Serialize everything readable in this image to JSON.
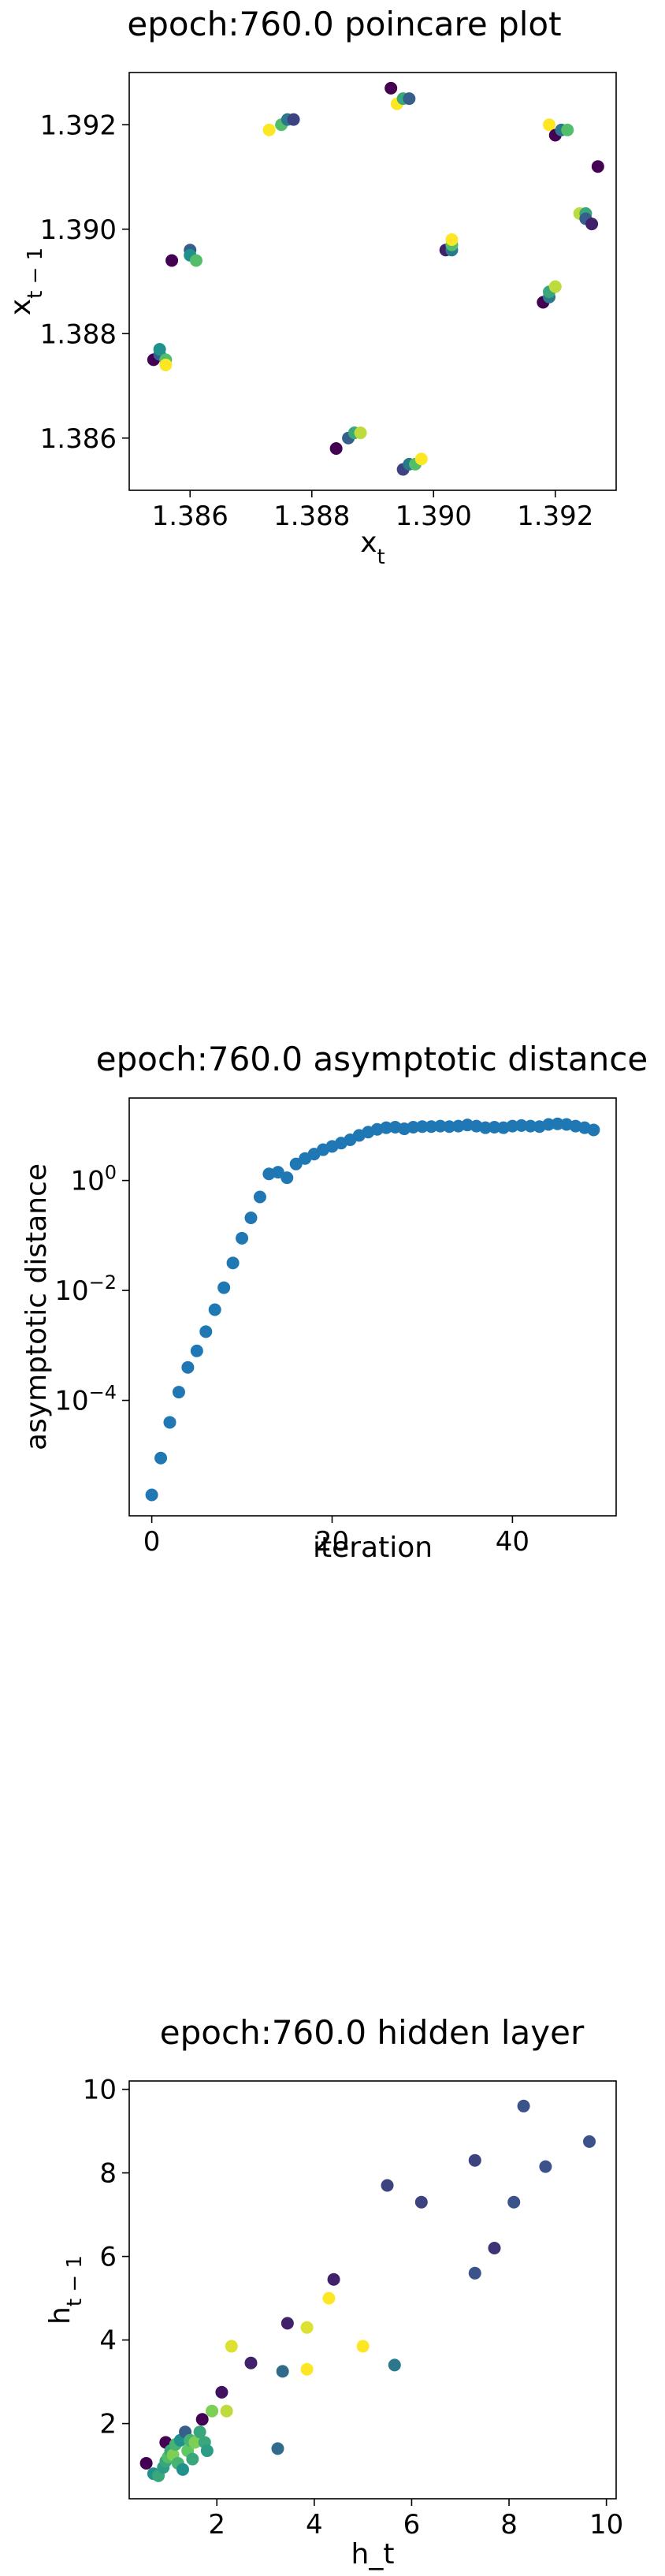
{
  "chart_data": [
    {
      "type": "scatter",
      "title": "epoch:760.0 poincare plot",
      "xlabel": "x_t",
      "ylabel": "x_{t-1}",
      "xlim": [
        1.385,
        1.393
      ],
      "ylim": [
        1.385,
        1.393
      ],
      "xticks": [
        "1.386",
        "1.388",
        "1.390",
        "1.392"
      ],
      "yticks": [
        "1.386",
        "1.388",
        "1.390",
        "1.392"
      ],
      "colormap": [
        "#440154",
        "#3b528b",
        "#21918c",
        "#5ec962",
        "#fde725"
      ],
      "points": [
        {
          "x": 1.3854,
          "y": 1.3875,
          "c": 0.0
        },
        {
          "x": 1.3855,
          "y": 1.3876,
          "c": 0.3
        },
        {
          "x": 1.3855,
          "y": 1.3877,
          "c": 0.5
        },
        {
          "x": 1.3856,
          "y": 1.3875,
          "c": 0.7
        },
        {
          "x": 1.3856,
          "y": 1.3874,
          "c": 1.0
        },
        {
          "x": 1.3857,
          "y": 1.3894,
          "c": 0.0
        },
        {
          "x": 1.386,
          "y": 1.3896,
          "c": 0.3
        },
        {
          "x": 1.386,
          "y": 1.3895,
          "c": 0.5
        },
        {
          "x": 1.3861,
          "y": 1.3894,
          "c": 0.7
        },
        {
          "x": 1.3873,
          "y": 1.3919,
          "c": 1.0
        },
        {
          "x": 1.3875,
          "y": 1.392,
          "c": 0.7
        },
        {
          "x": 1.3876,
          "y": 1.3921,
          "c": 0.4
        },
        {
          "x": 1.3877,
          "y": 1.3921,
          "c": 0.2
        },
        {
          "x": 1.3884,
          "y": 1.3858,
          "c": 0.0
        },
        {
          "x": 1.3886,
          "y": 1.386,
          "c": 0.3
        },
        {
          "x": 1.3887,
          "y": 1.3861,
          "c": 0.6
        },
        {
          "x": 1.3888,
          "y": 1.3861,
          "c": 0.9
        },
        {
          "x": 1.3893,
          "y": 1.3927,
          "c": 0.0
        },
        {
          "x": 1.3894,
          "y": 1.3924,
          "c": 1.0
        },
        {
          "x": 1.3895,
          "y": 1.3925,
          "c": 0.6
        },
        {
          "x": 1.3896,
          "y": 1.3925,
          "c": 0.3
        },
        {
          "x": 1.3895,
          "y": 1.3854,
          "c": 0.2
        },
        {
          "x": 1.3896,
          "y": 1.3855,
          "c": 0.4
        },
        {
          "x": 1.3897,
          "y": 1.3855,
          "c": 0.7
        },
        {
          "x": 1.3898,
          "y": 1.3856,
          "c": 1.0
        },
        {
          "x": 1.3902,
          "y": 1.3896,
          "c": 0.1
        },
        {
          "x": 1.3903,
          "y": 1.3896,
          "c": 0.4
        },
        {
          "x": 1.3903,
          "y": 1.3897,
          "c": 0.7
        },
        {
          "x": 1.3903,
          "y": 1.3898,
          "c": 1.0
        },
        {
          "x": 1.3918,
          "y": 1.3886,
          "c": 0.0
        },
        {
          "x": 1.3919,
          "y": 1.3887,
          "c": 0.4
        },
        {
          "x": 1.3919,
          "y": 1.3888,
          "c": 0.6
        },
        {
          "x": 1.392,
          "y": 1.3889,
          "c": 0.9
        },
        {
          "x": 1.3919,
          "y": 1.392,
          "c": 1.0
        },
        {
          "x": 1.392,
          "y": 1.3918,
          "c": 0.0
        },
        {
          "x": 1.3921,
          "y": 1.3919,
          "c": 0.4
        },
        {
          "x": 1.3922,
          "y": 1.3919,
          "c": 0.7
        },
        {
          "x": 1.3924,
          "y": 1.3903,
          "c": 0.9
        },
        {
          "x": 1.3925,
          "y": 1.3903,
          "c": 0.6
        },
        {
          "x": 1.3925,
          "y": 1.3902,
          "c": 0.3
        },
        {
          "x": 1.3926,
          "y": 1.3901,
          "c": 0.1
        },
        {
          "x": 1.3927,
          "y": 1.3912,
          "c": 0.0
        }
      ]
    },
    {
      "type": "scatter",
      "title": "epoch:760.0 asymptotic distance",
      "xlabel": "iteration",
      "ylabel": "asymptotic distance",
      "yscale": "log",
      "xlim": [
        -2.5,
        51.5
      ],
      "ylim_log10": [
        -6.1,
        1.5
      ],
      "xticks": [
        0,
        20,
        40
      ],
      "yticks_exp": [
        -4,
        -2,
        0
      ],
      "tick_base": "10",
      "color": "#1f77b4",
      "log10_values": [
        -5.72,
        -5.05,
        -4.4,
        -3.85,
        -3.4,
        -3.1,
        -2.75,
        -2.35,
        -1.95,
        -1.5,
        -1.05,
        -0.68,
        -0.3,
        0.12,
        0.15,
        0.05,
        0.3,
        0.4,
        0.48,
        0.56,
        0.62,
        0.68,
        0.74,
        0.82,
        0.88,
        0.93,
        0.96,
        0.97,
        0.94,
        0.97,
        0.98,
        0.98,
        0.99,
        0.98,
        0.99,
        1.01,
        0.99,
        0.96,
        0.97,
        0.96,
        0.99,
        1.0,
        0.99,
        0.98,
        1.02,
        1.03,
        1.02,
        0.99,
        0.96,
        0.92
      ]
    },
    {
      "type": "scatter",
      "title": "epoch:760.0 hidden layer",
      "xlabel": "h_t",
      "ylabel": "h_{t-1}",
      "xlim": [
        0.2,
        10.2
      ],
      "ylim": [
        0.2,
        10.2
      ],
      "xticks": [
        2,
        4,
        6,
        8,
        10
      ],
      "yticks": [
        2,
        4,
        6,
        8,
        10
      ],
      "points": [
        {
          "x": 0.55,
          "y": 1.05,
          "c": 0.0
        },
        {
          "x": 0.7,
          "y": 0.8,
          "c": 0.5
        },
        {
          "x": 0.8,
          "y": 0.75,
          "c": 0.6
        },
        {
          "x": 0.9,
          "y": 0.95,
          "c": 0.55
        },
        {
          "x": 0.95,
          "y": 1.1,
          "c": 0.6
        },
        {
          "x": 0.95,
          "y": 1.55,
          "c": 0.0
        },
        {
          "x": 1.0,
          "y": 1.2,
          "c": 0.7
        },
        {
          "x": 1.05,
          "y": 1.35,
          "c": 0.6
        },
        {
          "x": 1.1,
          "y": 1.25,
          "c": 0.8
        },
        {
          "x": 1.15,
          "y": 1.5,
          "c": 0.65
        },
        {
          "x": 1.2,
          "y": 1.05,
          "c": 0.65
        },
        {
          "x": 1.25,
          "y": 1.6,
          "c": 0.5
        },
        {
          "x": 1.3,
          "y": 0.9,
          "c": 0.5
        },
        {
          "x": 1.35,
          "y": 1.8,
          "c": 0.3
        },
        {
          "x": 1.4,
          "y": 1.35,
          "c": 0.75
        },
        {
          "x": 1.45,
          "y": 1.6,
          "c": 0.65
        },
        {
          "x": 1.5,
          "y": 1.15,
          "c": 0.6
        },
        {
          "x": 1.55,
          "y": 1.55,
          "c": 0.8
        },
        {
          "x": 1.65,
          "y": 1.8,
          "c": 0.6
        },
        {
          "x": 1.7,
          "y": 2.1,
          "c": 0.0
        },
        {
          "x": 1.75,
          "y": 1.55,
          "c": 0.6
        },
        {
          "x": 1.8,
          "y": 1.35,
          "c": 0.55
        },
        {
          "x": 1.9,
          "y": 2.3,
          "c": 0.8
        },
        {
          "x": 2.1,
          "y": 2.75,
          "c": 0.05
        },
        {
          "x": 2.2,
          "y": 2.3,
          "c": 0.9
        },
        {
          "x": 2.3,
          "y": 3.85,
          "c": 0.95
        },
        {
          "x": 2.7,
          "y": 3.45,
          "c": 0.1
        },
        {
          "x": 3.25,
          "y": 1.4,
          "c": 0.35
        },
        {
          "x": 3.35,
          "y": 3.25,
          "c": 0.35
        },
        {
          "x": 3.45,
          "y": 4.4,
          "c": 0.1
        },
        {
          "x": 3.85,
          "y": 4.3,
          "c": 0.95
        },
        {
          "x": 3.85,
          "y": 3.3,
          "c": 1.0
        },
        {
          "x": 4.3,
          "y": 5.0,
          "c": 1.0
        },
        {
          "x": 4.4,
          "y": 5.45,
          "c": 0.1
        },
        {
          "x": 5.0,
          "y": 3.85,
          "c": 1.0
        },
        {
          "x": 5.5,
          "y": 7.7,
          "c": 0.2
        },
        {
          "x": 5.65,
          "y": 3.4,
          "c": 0.4
        },
        {
          "x": 6.2,
          "y": 7.3,
          "c": 0.2
        },
        {
          "x": 7.3,
          "y": 8.3,
          "c": 0.2
        },
        {
          "x": 7.3,
          "y": 5.6,
          "c": 0.25
        },
        {
          "x": 7.7,
          "y": 6.2,
          "c": 0.15
        },
        {
          "x": 8.1,
          "y": 7.3,
          "c": 0.25
        },
        {
          "x": 8.3,
          "y": 9.6,
          "c": 0.25
        },
        {
          "x": 8.75,
          "y": 8.15,
          "c": 0.25
        },
        {
          "x": 9.65,
          "y": 8.75,
          "c": 0.25
        }
      ]
    }
  ]
}
